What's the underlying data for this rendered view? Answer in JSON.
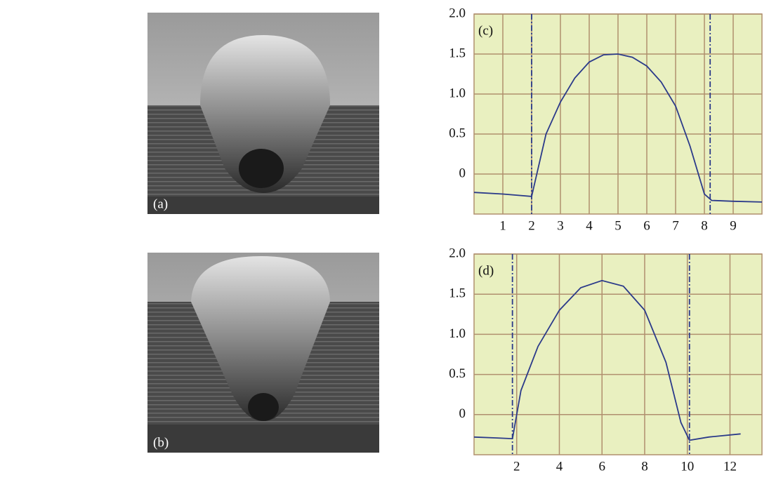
{
  "images": [
    {
      "label": "(a)"
    },
    {
      "label": "(b)"
    }
  ],
  "chart_data": [
    {
      "type": "line",
      "label": "(c)",
      "color": "#2b3a8a",
      "background": "#e9f0c0",
      "grid": true,
      "x": [
        0,
        1,
        2,
        2.5,
        3,
        3.5,
        4,
        4.5,
        5,
        5.5,
        6,
        6.5,
        7,
        7.5,
        8,
        8.25,
        9,
        10
      ],
      "values": [
        -0.23,
        -0.25,
        -0.28,
        0.5,
        0.9,
        1.2,
        1.4,
        1.49,
        1.5,
        1.46,
        1.35,
        1.15,
        0.85,
        0.35,
        -0.25,
        -0.33,
        -0.34,
        -0.35
      ],
      "vlines": [
        2,
        8.2
      ],
      "xlim": [
        0,
        10
      ],
      "xticks": [
        1,
        2,
        3,
        4,
        5,
        6,
        7,
        8,
        9
      ],
      "ylim": [
        -0.5,
        2.0
      ],
      "yticks": [
        0,
        0.5,
        {
          "value": 1,
          "label": "1.0"
        },
        1.5,
        {
          "value": 2,
          "label": "2.0"
        }
      ]
    },
    {
      "type": "line",
      "label": "(d)",
      "color": "#2b3a8a",
      "background": "#e9f0c0",
      "grid": true,
      "x": [
        0,
        1,
        1.8,
        2.2,
        3,
        4,
        5,
        6,
        7,
        8,
        9,
        9.7,
        10.1,
        11,
        12.5
      ],
      "values": [
        -0.28,
        -0.29,
        -0.3,
        0.3,
        0.85,
        1.3,
        1.58,
        1.67,
        1.6,
        1.3,
        0.65,
        -0.1,
        -0.32,
        -0.28,
        -0.24
      ],
      "vlines": [
        1.8,
        10.1
      ],
      "xlim": [
        0,
        13.5
      ],
      "xticks": [
        2,
        4,
        6,
        8,
        10,
        12
      ],
      "ylim": [
        -0.5,
        2.0
      ],
      "yticks": [
        0,
        0.5,
        {
          "value": 1,
          "label": "1.0"
        },
        1.5,
        {
          "value": 2,
          "label": "2.0"
        }
      ]
    }
  ]
}
